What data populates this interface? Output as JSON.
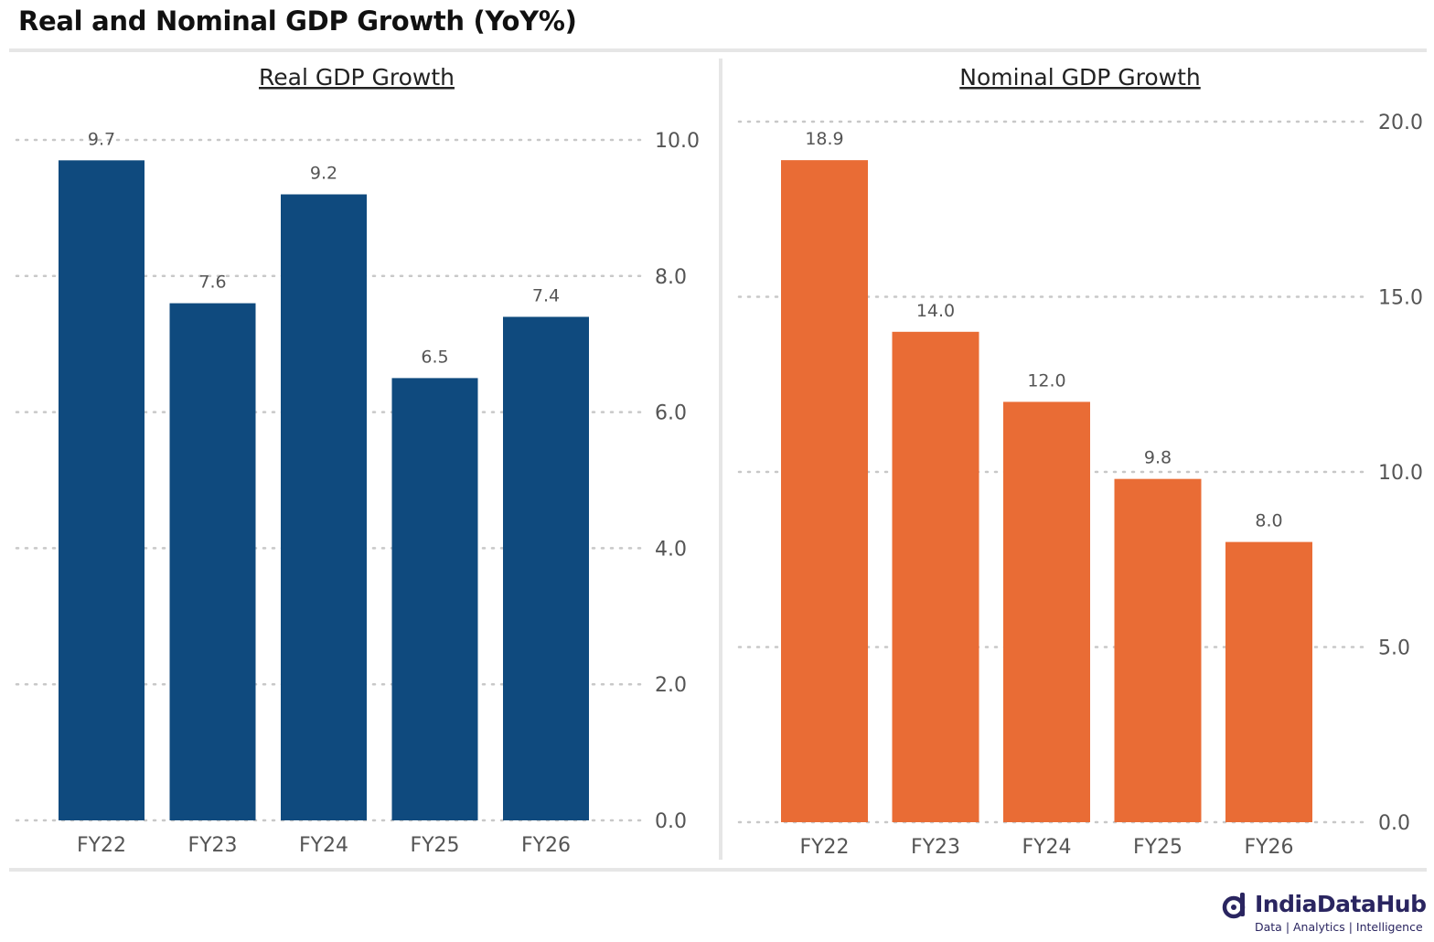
{
  "title": "Real and Nominal GDP Growth (YoY%)",
  "logo": {
    "name": "IndiaDataHub",
    "tagline": "Data | Analytics | Intelligence"
  },
  "chart_data": [
    {
      "type": "bar",
      "title": "Real GDP Growth",
      "categories": [
        "FY22",
        "FY23",
        "FY24",
        "FY25",
        "FY26"
      ],
      "values": [
        9.7,
        7.6,
        9.2,
        6.5,
        7.4
      ],
      "value_labels": [
        "9.7",
        "7.6",
        "9.2",
        "6.5",
        "7.4"
      ],
      "yticks": [
        "0.0",
        "2.0",
        "4.0",
        "6.0",
        "8.0",
        "10.0"
      ],
      "ylim": [
        0,
        10
      ],
      "yaxis_position": "right",
      "grid": true,
      "color": "#0f4a7e"
    },
    {
      "type": "bar",
      "title": "Nominal GDP Growth",
      "categories": [
        "FY22",
        "FY23",
        "FY24",
        "FY25",
        "FY26"
      ],
      "values": [
        18.9,
        14.0,
        12.0,
        9.8,
        8.0
      ],
      "value_labels": [
        "18.9",
        "14.0",
        "12.0",
        "9.8",
        "8.0"
      ],
      "yticks": [
        "0.0",
        "5.0",
        "10.0",
        "15.0",
        "20.0"
      ],
      "ylim": [
        0,
        20
      ],
      "yaxis_position": "right",
      "grid": true,
      "color": "#e96c35"
    }
  ]
}
